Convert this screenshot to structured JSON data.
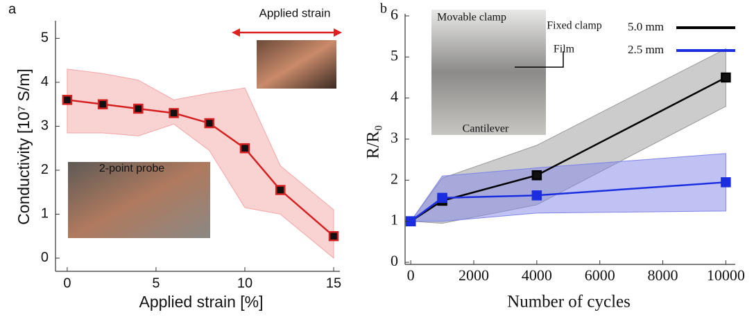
{
  "chart_data": [
    {
      "type": "line",
      "panel_label": "a",
      "x_label": "Applied strain [%]",
      "y_label": "Conductivity [10⁷ S/m]",
      "x": [
        0,
        2,
        4,
        6,
        8,
        10,
        12,
        15
      ],
      "series": [
        {
          "color": "#d62020",
          "marker_color": "#111111",
          "band_color": "#f4a6a6",
          "values": [
            3.6,
            3.5,
            3.4,
            3.3,
            3.07,
            2.5,
            1.55,
            0.5
          ],
          "band_upper": [
            4.3,
            4.2,
            4.05,
            3.6,
            3.75,
            3.87,
            2.1,
            1.1
          ],
          "band_lower": [
            2.85,
            2.85,
            2.78,
            3.05,
            2.45,
            1.15,
            1.0,
            0.0
          ]
        }
      ],
      "xlim": [
        -0.66,
        15.35
      ],
      "ylim": [
        -0.3,
        5.4
      ],
      "xticks": [
        0,
        5,
        10,
        15
      ],
      "yticks": [
        0,
        1,
        2,
        3,
        4,
        5
      ],
      "annotations": [
        "Applied strain",
        "2-point probe"
      ]
    },
    {
      "type": "line",
      "panel_label": "b",
      "x_label": "Number of cycles",
      "y_label": "R/R₀",
      "x": [
        0,
        1000,
        4000,
        10000
      ],
      "series": [
        {
          "name": "5.0 mm",
          "color": "#000000",
          "marker_color": "#111111",
          "band_color": "#9a9a9a",
          "values": [
            1,
            1.5,
            2.12,
            4.5
          ],
          "band_upper": [
            1,
            2.05,
            2.85,
            5.2
          ],
          "band_lower": [
            1,
            0.95,
            1.4,
            3.8
          ]
        },
        {
          "name": "2.5 mm",
          "color": "#1a2ee0",
          "marker_color": "#1a2ee0",
          "band_color": "#7f85e8",
          "values": [
            1,
            1.57,
            1.63,
            1.95
          ],
          "band_upper": [
            1,
            2.1,
            2.3,
            2.65
          ],
          "band_lower": [
            1,
            1.0,
            1.2,
            1.25
          ]
        }
      ],
      "xlim": [
        -180,
        10300
      ],
      "ylim": [
        -0.05,
        6.05
      ],
      "xticks": [
        0,
        2000,
        4000,
        6000,
        8000,
        10000
      ],
      "yticks": [
        0,
        1,
        2,
        3,
        4,
        5,
        6
      ],
      "legend": "upper right",
      "annotations": [
        "Movable clamp",
        "Fixed clamp",
        "Film",
        "Cantilever"
      ]
    }
  ]
}
